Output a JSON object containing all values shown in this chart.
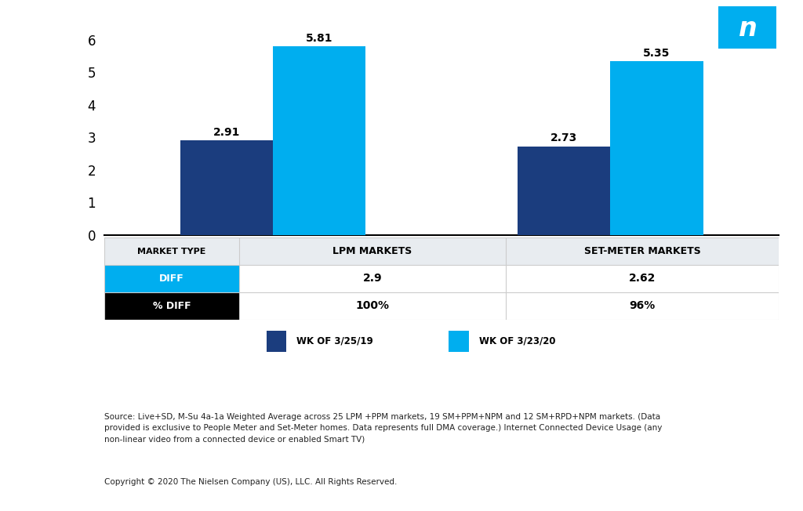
{
  "bar_groups": [
    "LPM MARKETS",
    "SET-METER MARKETS"
  ],
  "series": [
    {
      "label": "WK OF 3/25/19",
      "color": "#1b3d7e",
      "values": [
        2.91,
        2.73
      ]
    },
    {
      "label": "WK OF 3/23/20",
      "color": "#00aeef",
      "values": [
        5.81,
        5.35
      ]
    }
  ],
  "bar_labels": [
    "2.91",
    "5.81",
    "2.73",
    "5.35"
  ],
  "ylim": [
    0,
    6.6
  ],
  "yticks": [
    0,
    1,
    2,
    3,
    4,
    5,
    6
  ],
  "table_headers": [
    "MARKET TYPE",
    "LPM MARKETS",
    "SET-METER MARKETS"
  ],
  "table_row1_label": "DIFF",
  "table_row1_color": "#00aeef",
  "table_row1_values": [
    "2.9",
    "2.62"
  ],
  "table_row2_label": "% DIFF",
  "table_row2_color": "#000000",
  "table_row2_values": [
    "100%",
    "96%"
  ],
  "source_text": "Source: Live+SD, M-Su 4a-1a Weighted Average across 25 LPM +PPM markets, 19 SM+PPM+NPM and 12 SM+RPD+NPM markets. (Data\nprovided is exclusive to People Meter and Set-Meter homes. Data represents full DMA coverage.) Internet Connected Device Usage (any\nnon-linear video from a connected device or enabled Smart TV)",
  "copyright_text": "Copyright © 2020 The Nielsen Company (US), LLC. All Rights Reserved.",
  "nielsen_logo_color": "#00aeef",
  "background_color": "#ffffff",
  "nielsen_logo_text": "n",
  "table_header_bg": "#e8ecf0",
  "table_border_color": "#cccccc"
}
